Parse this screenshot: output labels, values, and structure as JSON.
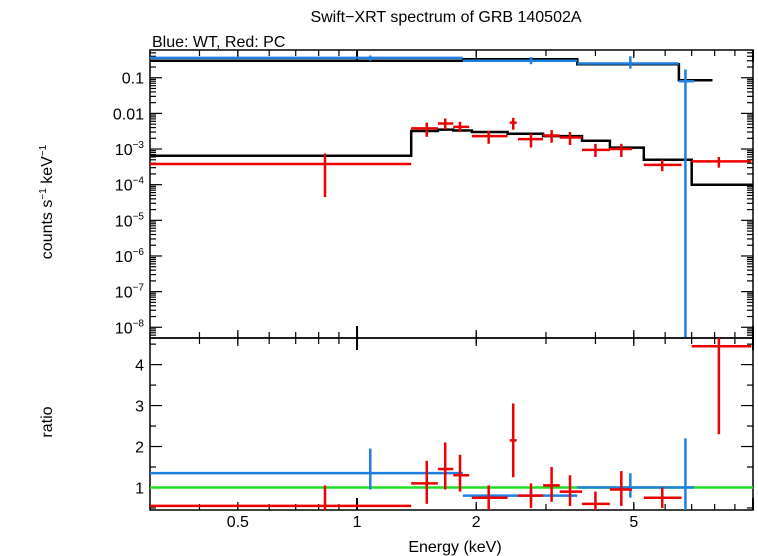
{
  "chart_data": {
    "type": "scatter",
    "title": "Swift−XRT spectrum of GRB 140502A",
    "subtitle": "Blue: WT, Red: PC",
    "xlabel": "Energy (keV)",
    "x_scale": "log",
    "xlim": [
      0.3,
      10
    ],
    "x_ticks": [
      {
        "v": 0.5,
        "label": "0.5"
      },
      {
        "v": 1,
        "label": "1"
      },
      {
        "v": 2,
        "label": "2"
      },
      {
        "v": 5,
        "label": "5"
      }
    ],
    "colors": {
      "wt": "#1f7fe0",
      "pc": "#ee0000",
      "model": "#000000",
      "ratio_line": "#22dd22"
    },
    "panels": [
      {
        "id": "spectrum",
        "ylabel": {
          "pre": "counts s",
          "sup1": "−1",
          "mid": " keV",
          "sup2": "−1"
        },
        "y_scale": "log",
        "ylim": [
          5e-09,
          0.6
        ],
        "y_ticks": [
          {
            "v": 0.1,
            "label": "0.1"
          },
          {
            "v": 0.01,
            "label": "0.01"
          },
          {
            "v": 0.001,
            "base": "10",
            "exp": "−3"
          },
          {
            "v": 0.0001,
            "base": "10",
            "exp": "−4"
          },
          {
            "v": 1e-05,
            "base": "10",
            "exp": "−5"
          },
          {
            "v": 1e-06,
            "base": "10",
            "exp": "−6"
          },
          {
            "v": 1e-07,
            "base": "10",
            "exp": "−7"
          },
          {
            "v": 1e-08,
            "base": "10",
            "exp": "−8"
          }
        ],
        "series": [
          {
            "key": "wt",
            "points": [
              {
                "x": 1.08,
                "xlo": 0.3,
                "xhi": 1.85,
                "y": 0.36,
                "ylo": 0.3,
                "yhi": 0.42
              },
              {
                "x": 2.75,
                "xlo": 1.85,
                "xhi": 3.6,
                "y": 0.3,
                "ylo": 0.24,
                "yhi": 0.38
              },
              {
                "x": 4.9,
                "xlo": 3.6,
                "xhi": 6.5,
                "y": 0.25,
                "ylo": 0.18,
                "yhi": 0.4
              },
              {
                "x": 6.75,
                "xlo": 6.5,
                "xhi": 7.1,
                "y": 0.08,
                "ylo": 5e-09,
                "yhi": 0.17
              }
            ]
          },
          {
            "key": "pc",
            "points": [
              {
                "x": 0.83,
                "xlo": 0.3,
                "xhi": 1.37,
                "y": 0.00038,
                "ylo": 4.5e-05,
                "yhi": 0.00075
              },
              {
                "x": 1.5,
                "xlo": 1.37,
                "xhi": 1.6,
                "y": 0.0038,
                "ylo": 0.0022,
                "yhi": 0.0055
              },
              {
                "x": 1.67,
                "xlo": 1.6,
                "xhi": 1.75,
                "y": 0.0052,
                "ylo": 0.0035,
                "yhi": 0.0072
              },
              {
                "x": 1.82,
                "xlo": 1.75,
                "xhi": 1.92,
                "y": 0.0042,
                "ylo": 0.003,
                "yhi": 0.0058
              },
              {
                "x": 2.15,
                "xlo": 1.95,
                "xhi": 2.4,
                "y": 0.0023,
                "ylo": 0.0014,
                "yhi": 0.0032
              },
              {
                "x": 2.48,
                "xlo": 2.43,
                "xhi": 2.53,
                "y": 0.0055,
                "ylo": 0.0035,
                "yhi": 0.0075
              },
              {
                "x": 2.75,
                "xlo": 2.55,
                "xhi": 2.95,
                "y": 0.0019,
                "ylo": 0.0011,
                "yhi": 0.0027
              },
              {
                "x": 3.1,
                "xlo": 2.95,
                "xhi": 3.25,
                "y": 0.0024,
                "ylo": 0.0015,
                "yhi": 0.0034
              },
              {
                "x": 3.45,
                "xlo": 3.25,
                "xhi": 3.7,
                "y": 0.0021,
                "ylo": 0.0013,
                "yhi": 0.003
              },
              {
                "x": 4.0,
                "xlo": 3.7,
                "xhi": 4.35,
                "y": 0.00095,
                "ylo": 0.0006,
                "yhi": 0.0014
              },
              {
                "x": 4.65,
                "xlo": 4.35,
                "xhi": 4.95,
                "y": 0.001,
                "ylo": 0.0006,
                "yhi": 0.0014
              },
              {
                "x": 5.9,
                "xlo": 5.3,
                "xhi": 6.6,
                "y": 0.00036,
                "ylo": 0.00024,
                "yhi": 0.0005
              },
              {
                "x": 8.2,
                "xlo": 7.0,
                "xhi": 9.9,
                "y": 0.00045,
                "ylo": 0.0003,
                "yhi": 0.0006
              }
            ]
          }
        ],
        "models": [
          {
            "key": "wt",
            "steps": [
              {
                "x0": 0.3,
                "x1": 1.85,
                "y": 0.3
              },
              {
                "x0": 1.85,
                "x1": 3.6,
                "y": 0.33
              },
              {
                "x0": 3.6,
                "x1": 6.5,
                "y": 0.24
              },
              {
                "x0": 6.5,
                "x1": 7.9,
                "y": 0.085
              }
            ]
          },
          {
            "key": "pc",
            "steps": [
              {
                "x0": 0.3,
                "x1": 1.37,
                "y": 0.00065
              },
              {
                "x0": 1.37,
                "x1": 1.6,
                "y": 0.0032
              },
              {
                "x0": 1.6,
                "x1": 1.75,
                "y": 0.0035
              },
              {
                "x0": 1.75,
                "x1": 1.95,
                "y": 0.0033
              },
              {
                "x0": 1.95,
                "x1": 2.4,
                "y": 0.003
              },
              {
                "x0": 2.4,
                "x1": 2.95,
                "y": 0.0027
              },
              {
                "x0": 2.95,
                "x1": 3.7,
                "y": 0.0023
              },
              {
                "x0": 3.7,
                "x1": 4.35,
                "y": 0.0017
              },
              {
                "x0": 4.35,
                "x1": 5.3,
                "y": 0.0011
              },
              {
                "x0": 5.3,
                "x1": 7.0,
                "y": 0.0005
              },
              {
                "x0": 7.0,
                "x1": 10,
                "y": 0.0001
              }
            ]
          }
        ]
      },
      {
        "id": "ratio",
        "ylabel": "ratio",
        "y_scale": "linear",
        "ylim": [
          0.45,
          4.65
        ],
        "y_ticks": [
          {
            "v": 1,
            "label": "1"
          },
          {
            "v": 2,
            "label": "2"
          },
          {
            "v": 3,
            "label": "3"
          },
          {
            "v": 4,
            "label": "4"
          }
        ],
        "reference_line": 1,
        "series": [
          {
            "key": "wt",
            "points": [
              {
                "x": 1.08,
                "xlo": 0.3,
                "xhi": 1.85,
                "y": 1.35,
                "ylo": 0.95,
                "yhi": 1.95
              },
              {
                "x": 2.75,
                "xlo": 1.85,
                "xhi": 3.6,
                "y": 0.8,
                "ylo": 0.65,
                "yhi": 0.95
              },
              {
                "x": 4.9,
                "xlo": 3.6,
                "xhi": 6.5,
                "y": 1.0,
                "ylo": 0.75,
                "yhi": 1.35
              },
              {
                "x": 6.75,
                "xlo": 6.5,
                "xhi": 7.1,
                "y": 1.0,
                "ylo": 0.45,
                "yhi": 2.2
              }
            ]
          },
          {
            "key": "pc",
            "points": [
              {
                "x": 0.83,
                "xlo": 0.3,
                "xhi": 1.37,
                "y": 0.55,
                "ylo": 0.45,
                "yhi": 1.05
              },
              {
                "x": 1.5,
                "xlo": 1.37,
                "xhi": 1.6,
                "y": 1.1,
                "ylo": 0.6,
                "yhi": 1.65
              },
              {
                "x": 1.67,
                "xlo": 1.6,
                "xhi": 1.75,
                "y": 1.45,
                "ylo": 0.95,
                "yhi": 2.1
              },
              {
                "x": 1.82,
                "xlo": 1.75,
                "xhi": 1.92,
                "y": 1.3,
                "ylo": 0.9,
                "yhi": 1.8
              },
              {
                "x": 2.15,
                "xlo": 1.95,
                "xhi": 2.4,
                "y": 0.75,
                "ylo": 0.45,
                "yhi": 1.05
              },
              {
                "x": 2.48,
                "xlo": 2.43,
                "xhi": 2.53,
                "y": 2.15,
                "ylo": 1.25,
                "yhi": 3.05
              },
              {
                "x": 2.75,
                "xlo": 2.55,
                "xhi": 2.95,
                "y": 0.8,
                "ylo": 0.5,
                "yhi": 1.1
              },
              {
                "x": 3.1,
                "xlo": 2.95,
                "xhi": 3.25,
                "y": 1.05,
                "ylo": 0.65,
                "yhi": 1.5
              },
              {
                "x": 3.45,
                "xlo": 3.25,
                "xhi": 3.7,
                "y": 0.9,
                "ylo": 0.55,
                "yhi": 1.3
              },
              {
                "x": 4.0,
                "xlo": 3.7,
                "xhi": 4.35,
                "y": 0.6,
                "ylo": 0.45,
                "yhi": 0.9
              },
              {
                "x": 4.65,
                "xlo": 4.35,
                "xhi": 4.95,
                "y": 0.95,
                "ylo": 0.55,
                "yhi": 1.4
              },
              {
                "x": 5.9,
                "xlo": 5.3,
                "xhi": 6.6,
                "y": 0.75,
                "ylo": 0.5,
                "yhi": 1.0
              },
              {
                "x": 8.2,
                "xlo": 7.0,
                "xhi": 9.9,
                "y": 4.45,
                "ylo": 2.3,
                "yhi": 4.65
              }
            ]
          }
        ]
      }
    ]
  }
}
